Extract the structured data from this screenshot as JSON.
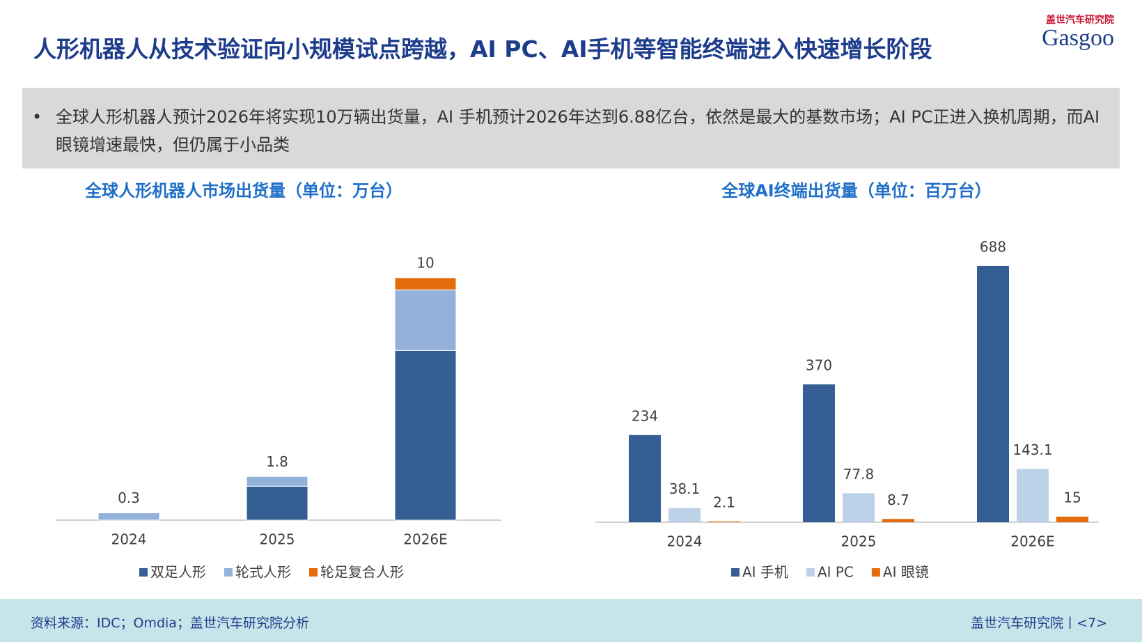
{
  "header": {
    "title": "人形机器人从技术验证向小规模试点跨越，AI PC、AI手机等智能终端进入快速增长阶段",
    "logo_brand": "盖世汽车研究院",
    "logo_name": "Gasgoo"
  },
  "summary": {
    "bullet": "全球人形机器人预计2026年将实现10万辆出货量，AI 手机预计2026年达到6.88亿台，依然是最大的基数市场；AI PC正进入换机周期，而AI眼镜增速最快，但仍属于小品类"
  },
  "chart_data": [
    {
      "type": "bar",
      "stacked": true,
      "title": "全球人形机器人市场出货量（单位：万台）",
      "categories": [
        "2024",
        "2025",
        "2026E"
      ],
      "series": [
        {
          "name": "双足人形",
          "color": "#355f94",
          "values": [
            0,
            1.4,
            7.0
          ]
        },
        {
          "name": "轮式人形",
          "color": "#93b1d9",
          "values": [
            0.3,
            0.4,
            2.5
          ]
        },
        {
          "name": "轮足复合人形",
          "color": "#e46c0a",
          "values": [
            0,
            0,
            0.5
          ]
        }
      ],
      "totals": [
        0.3,
        1.8,
        10
      ],
      "ylim": [
        0,
        11
      ]
    },
    {
      "type": "bar",
      "stacked": false,
      "title": "全球AI终端出货量（单位：百万台）",
      "categories": [
        "2024",
        "2025",
        "2026E"
      ],
      "series": [
        {
          "name": "AI 手机",
          "color": "#355f94",
          "values": [
            234,
            370,
            688
          ]
        },
        {
          "name": "AI PC",
          "color": "#bdd1e9",
          "values": [
            38.1,
            77.8,
            143.1
          ]
        },
        {
          "name": "AI 眼镜",
          "color": "#e46c0a",
          "values": [
            2.1,
            8.7,
            15
          ]
        }
      ],
      "ylim": [
        0,
        800
      ]
    }
  ],
  "footer": {
    "source": "资料来源：IDC；Omdia；盖世汽车研究院分析",
    "page": "盖世汽车研究院丨<7>"
  }
}
